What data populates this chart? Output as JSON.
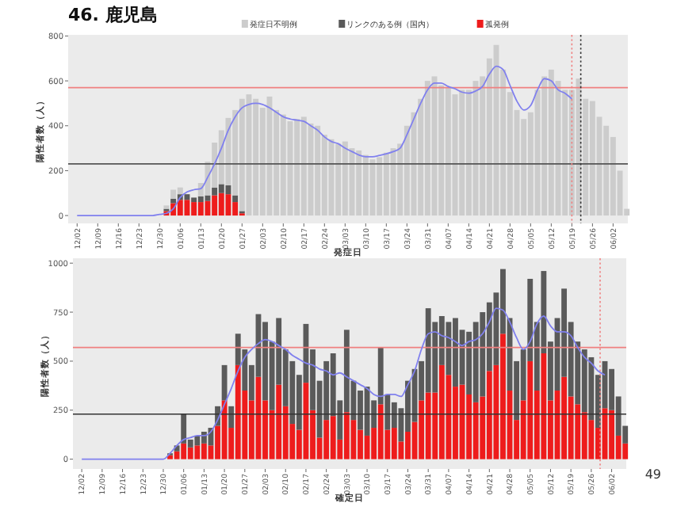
{
  "chart_data": [
    {
      "type": "bar",
      "title": "46. 鹿児島",
      "xlabel": "発症日",
      "ylabel": "陽性者数（人）",
      "stacked": true,
      "legend": "top",
      "categories": [
        "12/02",
        null,
        null,
        "12/09",
        null,
        null,
        "12/16",
        null,
        null,
        "12/23",
        null,
        null,
        "12/30",
        null,
        null,
        "01/06",
        null,
        null,
        "01/13",
        null,
        null,
        "01/20",
        null,
        null,
        "01/27",
        null,
        null,
        "02/03",
        null,
        null,
        "02/10",
        null,
        null,
        "02/17",
        null,
        null,
        "02/24",
        null,
        null,
        "03/03",
        null,
        null,
        "03/10",
        null,
        null,
        "03/17",
        null,
        null,
        "03/24",
        null,
        null,
        "03/31",
        null,
        null,
        "04/07",
        null,
        null,
        "04/14",
        null,
        null,
        "04/21",
        null,
        null,
        "04/28",
        null,
        null,
        "05/05",
        null,
        null,
        "05/12",
        null,
        null,
        "05/19",
        null,
        null,
        "05/26",
        null,
        null,
        "06/02",
        null,
        null
      ],
      "ylim": [
        -35,
        805
      ],
      "yticks": [
        0,
        200,
        400,
        600,
        800
      ],
      "ref_lines": [
        {
          "axis": "y",
          "value": 570,
          "color": "#f08080",
          "line_style": "solid"
        },
        {
          "axis": "y",
          "value": 230,
          "color": "#555555",
          "line_style": "solid"
        },
        {
          "axis": "x",
          "value": "05/19",
          "color": "#f08080",
          "line_style": "dotted"
        }
      ],
      "series": [
        {
          "name": "孤発例",
          "color": "#ee1c1c",
          "values": [
            0,
            0,
            0,
            0,
            0,
            0,
            0,
            0,
            0,
            0,
            0,
            0,
            0,
            20,
            55,
            70,
            70,
            60,
            60,
            65,
            90,
            100,
            95,
            60,
            10,
            0,
            0,
            0,
            0,
            0,
            0,
            0,
            0,
            0,
            0,
            0,
            0,
            0,
            0,
            0,
            0,
            0,
            0,
            0,
            0,
            0,
            0,
            0,
            0,
            0,
            0,
            0,
            0,
            0,
            0,
            0,
            0,
            0,
            0,
            0,
            0,
            0,
            0,
            0,
            0,
            0,
            0,
            0,
            0,
            0,
            0,
            0,
            0,
            0,
            0,
            0,
            0,
            0,
            0,
            0,
            0
          ]
        },
        {
          "name": "リンクのある例（国内）",
          "color": "#5a5a5a",
          "values": [
            0,
            0,
            0,
            0,
            0,
            0,
            0,
            0,
            0,
            0,
            0,
            0,
            0,
            10,
            20,
            25,
            25,
            20,
            25,
            25,
            35,
            40,
            40,
            30,
            10,
            0,
            0,
            0,
            0,
            0,
            0,
            0,
            0,
            0,
            0,
            0,
            0,
            0,
            0,
            0,
            0,
            0,
            0,
            0,
            0,
            0,
            0,
            0,
            0,
            0,
            0,
            0,
            0,
            0,
            0,
            0,
            0,
            0,
            0,
            0,
            0,
            0,
            0,
            0,
            0,
            0,
            0,
            0,
            0,
            0,
            0,
            0,
            0,
            0,
            0,
            0,
            0,
            0,
            0,
            0,
            0
          ]
        },
        {
          "name": "発症日不明例",
          "color": "#cccccc",
          "values": [
            0,
            0,
            0,
            0,
            0,
            0,
            0,
            0,
            0,
            0,
            0,
            0,
            null,
            15,
            40,
            30,
            null,
            null,
            60,
            150,
            200,
            240,
            300,
            380,
            500,
            540,
            520,
            480,
            530,
            470,
            450,
            420,
            430,
            440,
            410,
            400,
            360,
            340,
            320,
            330,
            300,
            290,
            270,
            250,
            260,
            280,
            300,
            320,
            400,
            460,
            520,
            600,
            620,
            580,
            570,
            540,
            560,
            560,
            600,
            620,
            700,
            760,
            650,
            550,
            470,
            430,
            460,
            560,
            620,
            650,
            600,
            560,
            560,
            610,
            520,
            510,
            440,
            400,
            350,
            200,
            30
          ]
        },
        {
          "type": "line",
          "color": "#8080ee",
          "values": [
            0,
            0,
            0,
            0,
            0,
            0,
            0,
            0,
            0,
            0,
            0,
            0,
            5,
            10,
            30,
            80,
            105,
            115,
            120,
            170,
            230,
            300,
            380,
            440,
            480,
            495,
            500,
            495,
            480,
            460,
            440,
            430,
            425,
            420,
            400,
            380,
            350,
            330,
            320,
            300,
            285,
            270,
            262,
            262,
            268,
            275,
            285,
            300,
            360,
            430,
            500,
            560,
            590,
            590,
            575,
            565,
            550,
            545,
            555,
            575,
            630,
            665,
            650,
            580,
            510,
            470,
            490,
            560,
            610,
            600,
            560,
            545,
            520,
            null,
            null,
            null,
            null,
            null,
            null,
            null,
            null
          ]
        }
      ]
    },
    {
      "type": "bar",
      "xlabel": "確定日",
      "ylabel": "陽性者数（人）",
      "stacked": true,
      "annotations": [
        "49"
      ],
      "categories": [
        "12/02",
        null,
        null,
        "12/09",
        null,
        null,
        "12/16",
        null,
        null,
        "12/23",
        null,
        null,
        "12/30",
        null,
        null,
        "01/06",
        null,
        null,
        "01/13",
        null,
        null,
        "01/20",
        null,
        null,
        "01/27",
        null,
        null,
        "02/03",
        null,
        null,
        "02/10",
        null,
        null,
        "02/17",
        null,
        null,
        "02/24",
        null,
        null,
        "03/03",
        null,
        null,
        "03/10",
        null,
        null,
        "03/17",
        null,
        null,
        "03/24",
        null,
        null,
        "03/31",
        null,
        null,
        "04/07",
        null,
        null,
        "04/14",
        null,
        null,
        "04/21",
        null,
        null,
        "04/28",
        null,
        null,
        "05/05",
        null,
        null,
        "05/12",
        null,
        null,
        "05/19",
        null,
        null,
        "05/26",
        null,
        null,
        "06/02",
        null,
        null
      ],
      "ylim": [
        -50,
        1025
      ],
      "yticks": [
        0,
        250,
        500,
        750,
        1000
      ],
      "ref_lines": [
        {
          "axis": "y",
          "value": 570,
          "color": "#f08080",
          "line_style": "solid"
        },
        {
          "axis": "y",
          "value": 230,
          "color": "#333333",
          "line_style": "solid"
        }
      ],
      "series": [
        {
          "color": "#ee1c1c",
          "values": [
            0,
            0,
            0,
            0,
            0,
            0,
            0,
            0,
            0,
            0,
            0,
            0,
            0,
            20,
            40,
            80,
            60,
            70,
            80,
            70,
            170,
            300,
            160,
            480,
            350,
            300,
            420,
            300,
            250,
            380,
            270,
            180,
            150,
            390,
            250,
            110,
            200,
            220,
            100,
            240,
            200,
            150,
            120,
            160,
            280,
            150,
            160,
            90,
            140,
            190,
            300,
            340,
            340,
            480,
            430,
            370,
            380,
            330,
            290,
            320,
            450,
            480,
            640,
            350,
            200,
            300,
            500,
            350,
            540,
            300,
            350,
            420,
            320,
            280,
            240,
            200,
            160,
            260,
            250,
            120,
            80
          ]
        },
        {
          "color": "#5a5a5a",
          "values": [
            0,
            0,
            0,
            0,
            0,
            0,
            0,
            0,
            0,
            0,
            0,
            0,
            0,
            10,
            30,
            150,
            40,
            50,
            60,
            90,
            100,
            180,
            110,
            160,
            210,
            180,
            320,
            400,
            350,
            340,
            290,
            320,
            280,
            300,
            310,
            290,
            300,
            320,
            200,
            420,
            200,
            200,
            250,
            140,
            290,
            180,
            130,
            170,
            260,
            270,
            200,
            430,
            360,
            250,
            270,
            350,
            280,
            320,
            410,
            430,
            350,
            370,
            330,
            370,
            300,
            260,
            420,
            350,
            420,
            300,
            370,
            450,
            380,
            320,
            320,
            320,
            270,
            240,
            210,
            200,
            90
          ]
        },
        {
          "type": "line",
          "color": "#8080ee",
          "values": [
            0,
            0,
            0,
            0,
            0,
            0,
            0,
            0,
            0,
            0,
            0,
            0,
            0,
            30,
            70,
            100,
            110,
            120,
            120,
            140,
            200,
            280,
            360,
            450,
            520,
            560,
            590,
            610,
            600,
            580,
            560,
            530,
            510,
            490,
            480,
            460,
            450,
            430,
            440,
            420,
            400,
            380,
            360,
            330,
            320,
            330,
            330,
            320,
            380,
            450,
            560,
            640,
            650,
            630,
            620,
            600,
            580,
            600,
            610,
            640,
            700,
            770,
            760,
            700,
            620,
            560,
            600,
            690,
            730,
            680,
            650,
            650,
            630,
            570,
            520,
            490,
            450,
            430,
            null,
            null,
            null
          ]
        }
      ]
    }
  ]
}
